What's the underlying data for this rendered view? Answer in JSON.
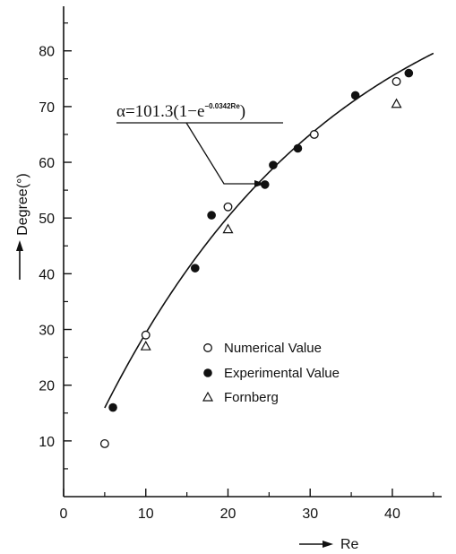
{
  "chart_data": {
    "type": "scatter",
    "title": "",
    "xlabel": "Re",
    "ylabel": "Degree(°)",
    "xlim": [
      0,
      46
    ],
    "ylim": [
      0,
      88
    ],
    "x_ticks": [
      0,
      10,
      20,
      30,
      40
    ],
    "y_ticks": [
      10,
      20,
      30,
      40,
      50,
      60,
      70,
      80
    ],
    "grid": false,
    "legend_position": "center-right",
    "fit_curve": {
      "label_prefix": "α=101.3(1−e",
      "label_exponent": "−0.0342Re",
      "label_suffix": ")",
      "amplitude": 101.3,
      "rate": 0.0342,
      "x_range": [
        5,
        45
      ]
    },
    "series": [
      {
        "name": "Numerical Value",
        "marker": "open-circle",
        "points": [
          [
            5,
            9.5
          ],
          [
            10,
            29
          ],
          [
            20,
            52
          ],
          [
            30.5,
            65
          ],
          [
            40.5,
            74.5
          ]
        ]
      },
      {
        "name": "Experimental Value",
        "marker": "filled-circle",
        "points": [
          [
            6,
            16
          ],
          [
            16,
            41
          ],
          [
            18,
            50.5
          ],
          [
            24.5,
            56
          ],
          [
            25.5,
            59.5
          ],
          [
            28.5,
            62.5
          ],
          [
            35.5,
            72
          ],
          [
            42,
            76
          ]
        ]
      },
      {
        "name": "Fornberg",
        "marker": "open-triangle",
        "points": [
          [
            10,
            27
          ],
          [
            20,
            48
          ],
          [
            40.5,
            70.5
          ]
        ]
      }
    ]
  }
}
